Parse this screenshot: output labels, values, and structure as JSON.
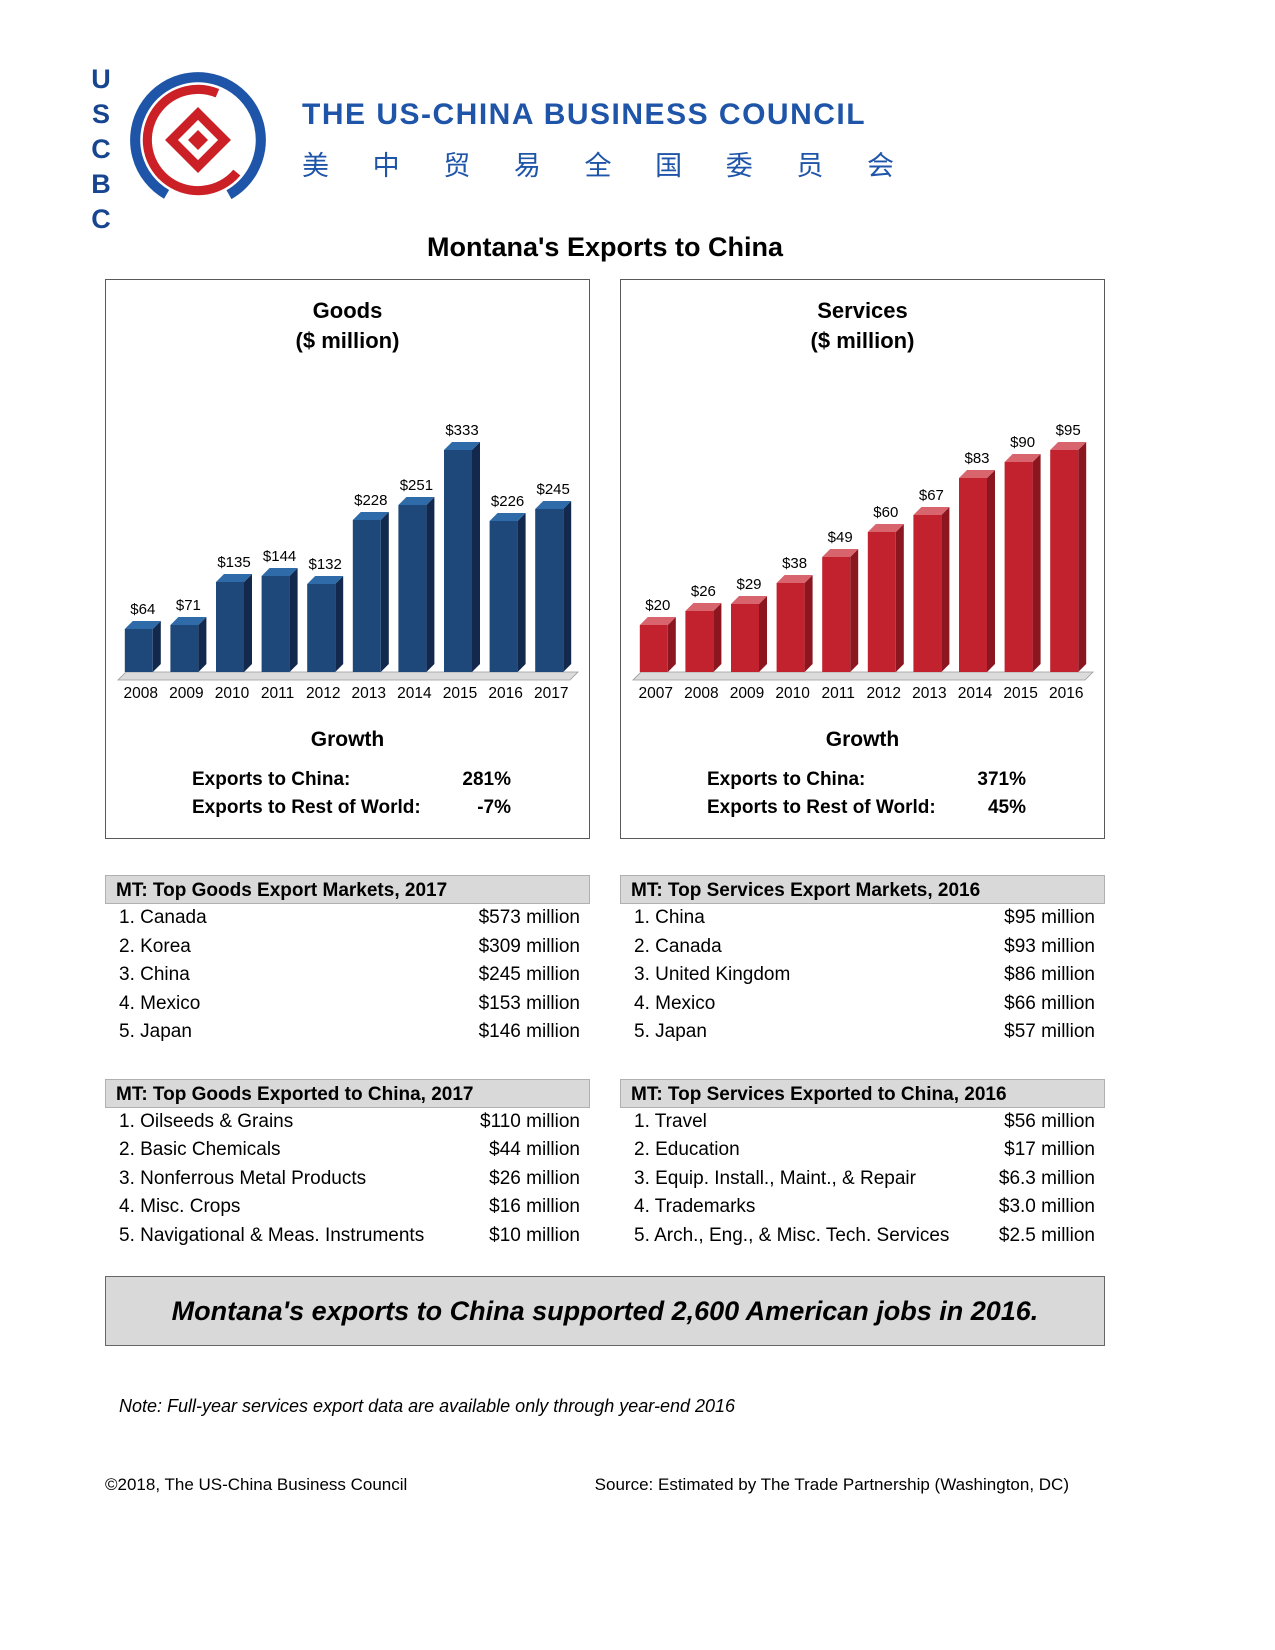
{
  "header": {
    "logo_acronym": "USCBC",
    "org_name": "THE US-CHINA BUSINESS COUNCIL",
    "org_name_cn": "美 中 贸 易 全 国 委 员 会"
  },
  "page_title": "Montana's Exports to China",
  "brand_colors": {
    "blue": "#1f55a8",
    "red": "#cc2027"
  },
  "chart_data": [
    {
      "type": "bar",
      "title": "Goods",
      "subtitle": "($ million)",
      "categories": [
        "2008",
        "2009",
        "2010",
        "2011",
        "2012",
        "2013",
        "2014",
        "2015",
        "2016",
        "2017"
      ],
      "values": [
        64,
        71,
        135,
        144,
        132,
        228,
        251,
        333,
        226,
        245
      ],
      "value_prefix": "$",
      "ylim": [
        0,
        333
      ],
      "grid": false,
      "legend": "none",
      "bar_colors": {
        "face": "#1e4879",
        "top": "#2f6ba8",
        "side": "#12294d"
      }
    },
    {
      "type": "bar",
      "title": "Services",
      "subtitle": "($ million)",
      "categories": [
        "2007",
        "2008",
        "2009",
        "2010",
        "2011",
        "2012",
        "2013",
        "2014",
        "2015",
        "2016"
      ],
      "values": [
        20,
        26,
        29,
        38,
        49,
        60,
        67,
        83,
        90,
        95
      ],
      "value_prefix": "$",
      "ylim": [
        0,
        95
      ],
      "grid": false,
      "legend": "none",
      "bar_colors": {
        "face": "#c2222e",
        "top": "#d8646d",
        "side": "#8c1620"
      }
    }
  ],
  "growth_sections": [
    {
      "heading": "Growth",
      "rows": [
        {
          "label": "Exports to China:",
          "value": "281%"
        },
        {
          "label": "Exports to Rest of World:",
          "value": "-7%"
        }
      ]
    },
    {
      "heading": "Growth",
      "rows": [
        {
          "label": "Exports to China:",
          "value": "371%"
        },
        {
          "label": "Exports to Rest of World:",
          "value": "45%"
        }
      ]
    }
  ],
  "tables": [
    {
      "header": "MT: Top Goods Export Markets, 2017",
      "rows": [
        {
          "label": "1. Canada",
          "value": "$573 million"
        },
        {
          "label": "2. Korea",
          "value": "$309 million"
        },
        {
          "label": "3. China",
          "value": "$245 million"
        },
        {
          "label": "4. Mexico",
          "value": "$153 million"
        },
        {
          "label": "5. Japan",
          "value": "$146 million"
        }
      ]
    },
    {
      "header": "MT: Top Services Export Markets, 2016",
      "rows": [
        {
          "label": "1. China",
          "value": "$95 million"
        },
        {
          "label": "2. Canada",
          "value": "$93 million"
        },
        {
          "label": "3. United Kingdom",
          "value": "$86 million"
        },
        {
          "label": "4. Mexico",
          "value": "$66 million"
        },
        {
          "label": "5. Japan",
          "value": "$57 million"
        }
      ]
    },
    {
      "header": "MT: Top Goods Exported to China, 2017",
      "rows": [
        {
          "label": "1. Oilseeds & Grains",
          "value": "$110 million"
        },
        {
          "label": "2. Basic Chemicals",
          "value": "$44 million"
        },
        {
          "label": "3. Nonferrous Metal Products",
          "value": "$26 million"
        },
        {
          "label": "4. Misc. Crops",
          "value": "$16 million"
        },
        {
          "label": "5. Navigational & Meas. Instruments",
          "value": "$10 million"
        }
      ]
    },
    {
      "header": "MT: Top Services Exported to China, 2016",
      "rows": [
        {
          "label": "1. Travel",
          "value": "$56 million"
        },
        {
          "label": "2. Education",
          "value": "$17 million"
        },
        {
          "label": "3. Equip. Install., Maint., & Repair",
          "value": "$6.3 million"
        },
        {
          "label": "4. Trademarks",
          "value": "$3.0 million"
        },
        {
          "label": "5. Arch., Eng., & Misc. Tech. Services",
          "value": "$2.5 million"
        }
      ]
    }
  ],
  "jobs_banner": "Montana's exports to China supported 2,600 American jobs in 2016.",
  "note": "Note: Full-year services export data are available only through year-end 2016",
  "footer": {
    "copyright": "©2018, The US-China Business Council",
    "source": "Source: Estimated by The Trade Partnership (Washington, DC)"
  }
}
